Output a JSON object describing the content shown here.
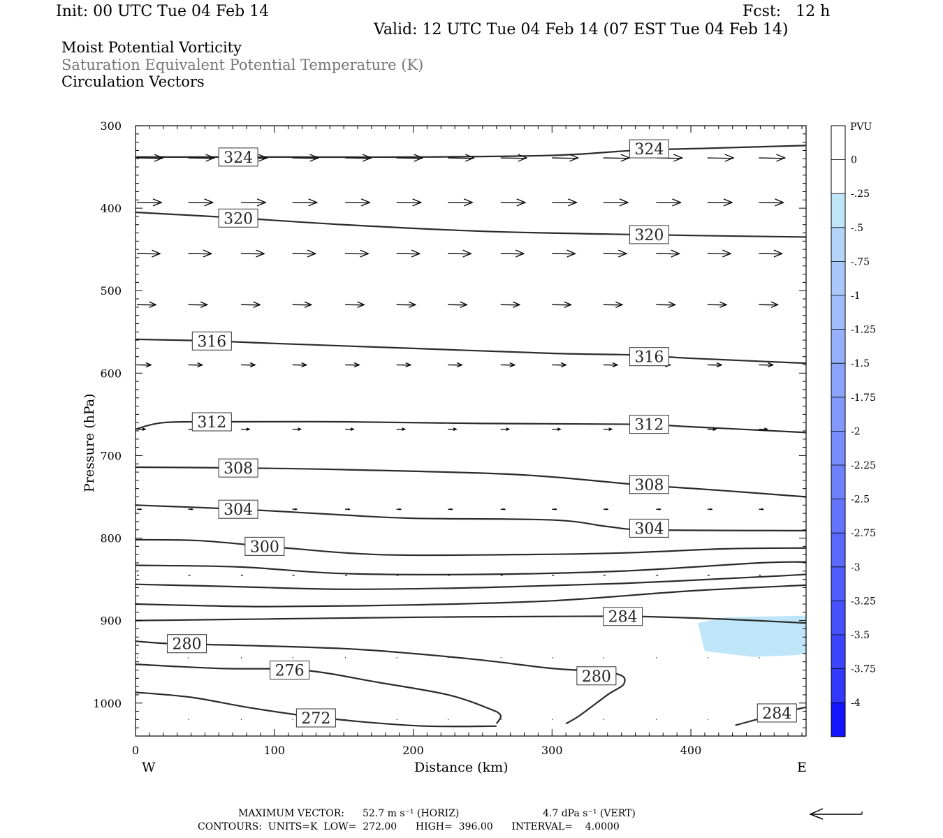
{
  "header": {
    "init": "Init: 00 UTC Tue 04 Feb 14",
    "fcst": "Fcst:   12 h",
    "valid": "Valid: 12 UTC Tue 04 Feb 14 (07 EST Tue 04 Feb 14)",
    "field1": "Moist Potential Vorticity",
    "field2": "Saturation Equivalent Potential Temperature (K)",
    "field3": "Circulation Vectors"
  },
  "footer": {
    "max_vector_label": "MAXIMUM VECTOR:",
    "max_vector_horiz": "52.7 m s⁻¹ (HORIZ)",
    "max_vector_vert": "4.7 dPa s⁻¹ (VERT)",
    "contours_line": "CONTOURS:  UNITS=K  LOW=  272.00      HIGH=  396.00      INTERVAL=    4.0000"
  },
  "colors": {
    "contour": "#2b2b2b",
    "vector": "#000000",
    "pv_fill": "#bfe6f8"
  },
  "chart_data": {
    "type": "cross-section",
    "xlabel": "Distance (km)",
    "ylabel": "Pressure (hPa)",
    "x_left_label": "W",
    "x_right_label": "E",
    "xlim": [
      0,
      483
    ],
    "ylim": [
      300,
      1040
    ],
    "y_inverted": true,
    "xticks": [
      0,
      100,
      200,
      300,
      400
    ],
    "yticks": [
      300,
      400,
      500,
      600,
      700,
      800,
      900,
      1000
    ],
    "colorbar": {
      "title": "PVU",
      "labels": [
        "0",
        "-.25",
        "-.5",
        "-.75",
        "-1",
        "-1.25",
        "-1.5",
        "-1.75",
        "-2",
        "-2.25",
        "-2.5",
        "-2.75",
        "-3",
        "-3.25",
        "-3.5",
        "-3.75",
        "-4"
      ],
      "colors": [
        "#ffffff",
        "#ffffff",
        "#bfe6f8",
        "#b4d4fa",
        "#aac8fa",
        "#a0bcfa",
        "#96b0fb",
        "#8ca4fb",
        "#8298fb",
        "#788cfc",
        "#6e80fc",
        "#6474fc",
        "#5a68fd",
        "#505cfd",
        "#4650fd",
        "#3c44fe",
        "#3238fe",
        "#1414ff"
      ]
    },
    "contours": [
      {
        "level": 324,
        "points": [
          [
            0,
            338
          ],
          [
            100,
            338
          ],
          [
            200,
            338
          ],
          [
            300,
            336
          ],
          [
            360,
            330
          ],
          [
            420,
            327
          ],
          [
            483,
            324
          ]
        ]
      },
      {
        "level": 320,
        "points": [
          [
            0,
            405
          ],
          [
            75,
            412
          ],
          [
            150,
            420
          ],
          [
            250,
            428
          ],
          [
            360,
            432
          ],
          [
            483,
            435
          ]
        ]
      },
      {
        "level": 316,
        "points": [
          [
            0,
            559
          ],
          [
            55,
            561
          ],
          [
            100,
            564
          ],
          [
            200,
            570
          ],
          [
            300,
            576
          ],
          [
            360,
            578
          ],
          [
            400,
            582
          ],
          [
            483,
            588
          ]
        ]
      },
      {
        "level": 312,
        "points": [
          [
            0,
            668
          ],
          [
            20,
            660
          ],
          [
            60,
            659
          ],
          [
            150,
            659
          ],
          [
            250,
            661
          ],
          [
            360,
            662
          ],
          [
            400,
            665
          ],
          [
            483,
            672
          ]
        ]
      },
      {
        "level": 308,
        "points": [
          [
            0,
            714
          ],
          [
            75,
            715
          ],
          [
            150,
            717
          ],
          [
            275,
            723
          ],
          [
            360,
            735
          ],
          [
            420,
            742
          ],
          [
            483,
            750
          ]
        ]
      },
      {
        "level": 304,
        "points": [
          [
            0,
            760
          ],
          [
            75,
            765
          ],
          [
            150,
            772
          ],
          [
            200,
            776
          ],
          [
            300,
            778
          ],
          [
            340,
            786
          ],
          [
            370,
            790
          ],
          [
            483,
            791
          ]
        ]
      },
      {
        "level": 300,
        "points": [
          [
            0,
            802
          ],
          [
            45,
            803
          ],
          [
            95,
            810
          ],
          [
            175,
            820
          ],
          [
            275,
            820
          ],
          [
            350,
            818
          ],
          [
            425,
            813
          ],
          [
            483,
            812
          ]
        ]
      },
      {
        "level": 296,
        "points": [
          [
            0,
            833
          ],
          [
            75,
            835
          ],
          [
            150,
            843
          ],
          [
            250,
            844
          ],
          [
            350,
            840
          ],
          [
            450,
            830
          ],
          [
            483,
            829
          ]
        ]
      },
      {
        "level": 292,
        "points": [
          [
            0,
            856
          ],
          [
            75,
            859
          ],
          [
            150,
            862
          ],
          [
            250,
            860
          ],
          [
            350,
            855
          ],
          [
            450,
            847
          ],
          [
            483,
            844
          ]
        ]
      },
      {
        "level": 288,
        "points": [
          [
            0,
            880
          ],
          [
            50,
            882
          ],
          [
            100,
            883
          ],
          [
            200,
            881
          ],
          [
            300,
            876
          ],
          [
            400,
            864
          ],
          [
            483,
            857
          ]
        ]
      },
      {
        "level": 284,
        "points": [
          [
            0,
            900
          ],
          [
            100,
            898
          ],
          [
            200,
            896
          ],
          [
            300,
            895
          ],
          [
            360,
            895
          ],
          [
            420,
            898
          ],
          [
            483,
            903
          ]
        ]
      },
      {
        "level": 280,
        "points": [
          [
            0,
            925
          ],
          [
            25,
            928
          ],
          [
            75,
            930
          ],
          [
            150,
            934
          ],
          [
            200,
            940
          ],
          [
            250,
            948
          ],
          [
            300,
            958
          ],
          [
            345,
            964
          ],
          [
            352,
            976
          ],
          [
            340,
            990
          ],
          [
            320,
            1015
          ],
          [
            310,
            1025
          ]
        ]
      },
      {
        "level": 276,
        "points": [
          [
            0,
            953
          ],
          [
            60,
            958
          ],
          [
            120,
            960
          ],
          [
            175,
            975
          ],
          [
            225,
            990
          ],
          [
            255,
            1007
          ],
          [
            263,
            1015
          ],
          [
            260,
            1025
          ]
        ]
      },
      {
        "level": 272,
        "points": [
          [
            0,
            987
          ],
          [
            40,
            993
          ],
          [
            80,
            1005
          ],
          [
            120,
            1015
          ],
          [
            165,
            1023
          ],
          [
            210,
            1028
          ],
          [
            260,
            1028
          ]
        ]
      },
      {
        "level": 284,
        "points": [
          [
            432,
            1027
          ],
          [
            465,
            1012
          ],
          [
            483,
            1005
          ]
        ]
      }
    ],
    "contour_labels": [
      {
        "text": "324",
        "x": 74,
        "y": 338
      },
      {
        "text": "324",
        "x": 370,
        "y": 328
      },
      {
        "text": "320",
        "x": 74,
        "y": 412
      },
      {
        "text": "320",
        "x": 370,
        "y": 432
      },
      {
        "text": "316",
        "x": 55,
        "y": 561
      },
      {
        "text": "316",
        "x": 370,
        "y": 580
      },
      {
        "text": "312",
        "x": 55,
        "y": 659
      },
      {
        "text": "312",
        "x": 370,
        "y": 662
      },
      {
        "text": "308",
        "x": 74,
        "y": 715
      },
      {
        "text": "308",
        "x": 370,
        "y": 735
      },
      {
        "text": "304",
        "x": 74,
        "y": 765
      },
      {
        "text": "304",
        "x": 370,
        "y": 788
      },
      {
        "text": "300",
        "x": 93,
        "y": 810
      },
      {
        "text": "284",
        "x": 351,
        "y": 895
      },
      {
        "text": "280",
        "x": 37,
        "y": 928
      },
      {
        "text": "276",
        "x": 111,
        "y": 960
      },
      {
        "text": "280",
        "x": 332,
        "y": 967
      },
      {
        "text": "272",
        "x": 130,
        "y": 1018
      },
      {
        "text": "284",
        "x": 462,
        "y": 1012
      }
    ],
    "pv_region": {
      "value_range": [
        -0.5,
        -0.25
      ],
      "points": [
        [
          405,
          903
        ],
        [
          425,
          896
        ],
        [
          483,
          894
        ],
        [
          483,
          940
        ],
        [
          475,
          942
        ],
        [
          445,
          944
        ],
        [
          410,
          937
        ]
      ]
    },
    "vectors": [
      {
        "p": 339,
        "x0": [
          0,
          37,
          75,
          112,
          150,
          187,
          224,
          262,
          299,
          336,
          374,
          411,
          448
        ],
        "len": [
          37,
          37,
          37,
          37,
          37,
          37,
          37,
          37,
          37,
          37,
          37,
          37,
          37
        ]
      },
      {
        "p": 393,
        "x0": [
          0,
          37,
          75,
          112,
          150,
          187,
          224,
          262,
          299,
          336,
          374,
          411,
          448
        ],
        "len": [
          35,
          35,
          35,
          35,
          35,
          35,
          35,
          35,
          35,
          35,
          35,
          35,
          35
        ]
      },
      {
        "p": 455,
        "x0": [
          0,
          37,
          75,
          112,
          150,
          187,
          224,
          262,
          299,
          336,
          374,
          411,
          448
        ],
        "len": [
          33,
          33,
          33,
          33,
          33,
          33,
          33,
          33,
          33,
          33,
          33,
          33,
          33
        ]
      },
      {
        "p": 517,
        "x0": [
          0,
          37,
          75,
          112,
          150,
          187,
          224,
          262,
          299,
          336,
          374,
          411,
          448
        ],
        "len": [
          27,
          27,
          27,
          27,
          27,
          27,
          27,
          27,
          27,
          27,
          27,
          27,
          27
        ]
      },
      {
        "p": 590,
        "x0": [
          0,
          37,
          75,
          112,
          150,
          187,
          224,
          262,
          299,
          336,
          374,
          411,
          448
        ],
        "len": [
          20,
          20,
          20,
          20,
          20,
          20,
          20,
          20,
          20,
          20,
          20,
          20,
          20
        ]
      },
      {
        "p": 668,
        "x0": [
          0,
          37,
          75,
          112,
          150,
          187,
          224,
          262,
          299,
          336,
          374,
          411,
          448
        ],
        "len": [
          12,
          12,
          12,
          12,
          12,
          12,
          12,
          12,
          12,
          12,
          12,
          12,
          12
        ]
      },
      {
        "p": 765,
        "x0": [
          0,
          37,
          75,
          112,
          150,
          187,
          224,
          262,
          299,
          336,
          374,
          411,
          448
        ],
        "len": [
          6,
          6,
          6,
          6,
          6,
          6,
          6,
          6,
          6,
          6,
          6,
          6,
          6
        ]
      },
      {
        "p": 845,
        "x0": [
          0,
          37,
          75,
          112,
          150,
          187,
          224,
          262,
          299,
          336,
          374,
          411,
          448
        ],
        "len": [
          3,
          3,
          3,
          3,
          3,
          3,
          3,
          3,
          3,
          3,
          3,
          3,
          3
        ]
      },
      {
        "p": 945,
        "x0": [
          0,
          37,
          75,
          112,
          150,
          187,
          224,
          262,
          299,
          336,
          374,
          411,
          448
        ],
        "len": [
          1,
          1,
          1,
          1,
          1,
          1,
          1,
          1,
          1,
          1,
          1,
          1,
          1
        ]
      },
      {
        "p": 1020,
        "x0": [
          0,
          37,
          75,
          112,
          150,
          187,
          224,
          262,
          299,
          336,
          374,
          411,
          448
        ],
        "len": [
          1,
          1,
          1,
          1,
          1,
          1,
          1,
          1,
          1,
          1,
          1,
          1,
          1
        ]
      }
    ]
  }
}
